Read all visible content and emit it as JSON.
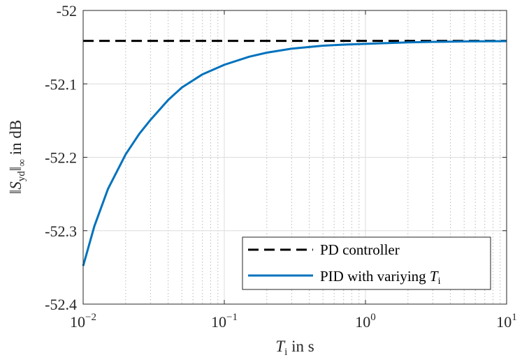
{
  "chart_data": {
    "type": "line",
    "title": "",
    "xscale": "log",
    "xlim": [
      0.01,
      10
    ],
    "ylim": [
      -52.4,
      -52.0
    ],
    "grid": true,
    "xlabel": {
      "base": "T",
      "sub": "i",
      "rest": " in s"
    },
    "ylabel": {
      "pre": "‖",
      "base": "S",
      "sub": "yd",
      "post": "‖",
      "inf": "∞",
      "rest": " in dB"
    },
    "x_ticks": [
      {
        "value": 0.01,
        "base": "10",
        "exp": "−2"
      },
      {
        "value": 0.1,
        "base": "10",
        "exp": "−1"
      },
      {
        "value": 1,
        "base": "10",
        "exp": "0"
      },
      {
        "value": 10,
        "base": "10",
        "exp": "1"
      }
    ],
    "y_ticks": [
      {
        "value": -52.0,
        "label": "-52"
      },
      {
        "value": -52.1,
        "label": "-52.1"
      },
      {
        "value": -52.2,
        "label": "-52.2"
      },
      {
        "value": -52.3,
        "label": "-52.3"
      },
      {
        "value": -52.4,
        "label": "-52.4"
      }
    ],
    "legend_position": "bottom-right",
    "series": [
      {
        "name": "PD controller",
        "color": "#000000",
        "style": "dashed",
        "x": [
          0.01,
          10
        ],
        "y": [
          -52.0415,
          -52.0415
        ]
      },
      {
        "name": "PID with variying ",
        "name_math": {
          "base": "T",
          "sub": "i"
        },
        "color": "#0072BD",
        "style": "solid",
        "x": [
          0.01,
          0.012,
          0.015,
          0.02,
          0.025,
          0.03,
          0.04,
          0.05,
          0.07,
          0.1,
          0.15,
          0.2,
          0.3,
          0.5,
          0.7,
          1,
          2,
          3,
          5,
          10
        ],
        "y": [
          -52.348,
          -52.294,
          -52.243,
          -52.196,
          -52.168,
          -52.149,
          -52.122,
          -52.105,
          -52.087,
          -52.074,
          -52.063,
          -52.0575,
          -52.052,
          -52.048,
          -52.0465,
          -52.0455,
          -52.0435,
          -52.0428,
          -52.0422,
          -52.0418
        ]
      }
    ]
  }
}
